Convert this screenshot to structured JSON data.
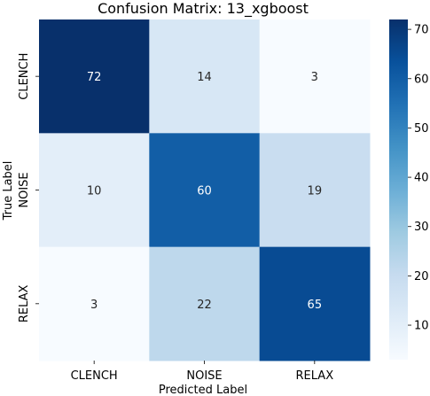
{
  "chart_data": {
    "type": "heatmap",
    "title": "Confusion Matrix: 13_xgboost",
    "xlabel": "Predicted Label",
    "ylabel": "True Label",
    "x_categories": [
      "CLENCH",
      "NOISE",
      "RELAX"
    ],
    "y_categories": [
      "CLENCH",
      "NOISE",
      "RELAX"
    ],
    "values": [
      [
        72,
        14,
        3
      ],
      [
        10,
        60,
        19
      ],
      [
        3,
        22,
        65
      ]
    ],
    "colormap": "Blues",
    "colorbar": {
      "min": 3,
      "max": 72,
      "ticks": [
        10,
        20,
        30,
        40,
        50,
        60,
        70
      ]
    }
  }
}
